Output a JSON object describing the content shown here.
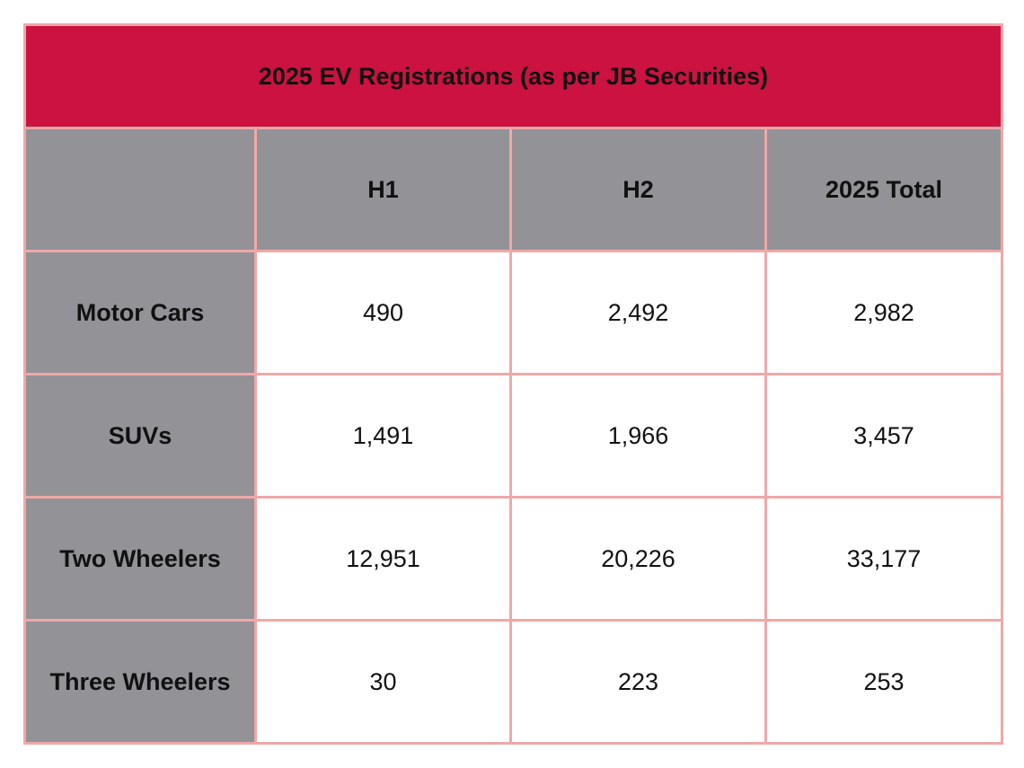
{
  "table": {
    "title": "2025 EV Registrations (as per JB Securities)",
    "columns": [
      "",
      "H1",
      "H2",
      "2025 Total"
    ],
    "rows": [
      {
        "label": "Motor Cars",
        "values": [
          "490",
          "2,492",
          "2,982"
        ]
      },
      {
        "label": "SUVs",
        "values": [
          "1,491",
          "1,966",
          "3,457"
        ]
      },
      {
        "label": "Two Wheelers",
        "values": [
          "12,951",
          "20,226",
          "33,177"
        ]
      },
      {
        "label": "Three Wheelers",
        "values": [
          "30",
          "223",
          "253"
        ]
      }
    ]
  },
  "colors": {
    "title_bg": "#cb1240",
    "header_bg": "#929297",
    "border": "#f0a8a8"
  }
}
